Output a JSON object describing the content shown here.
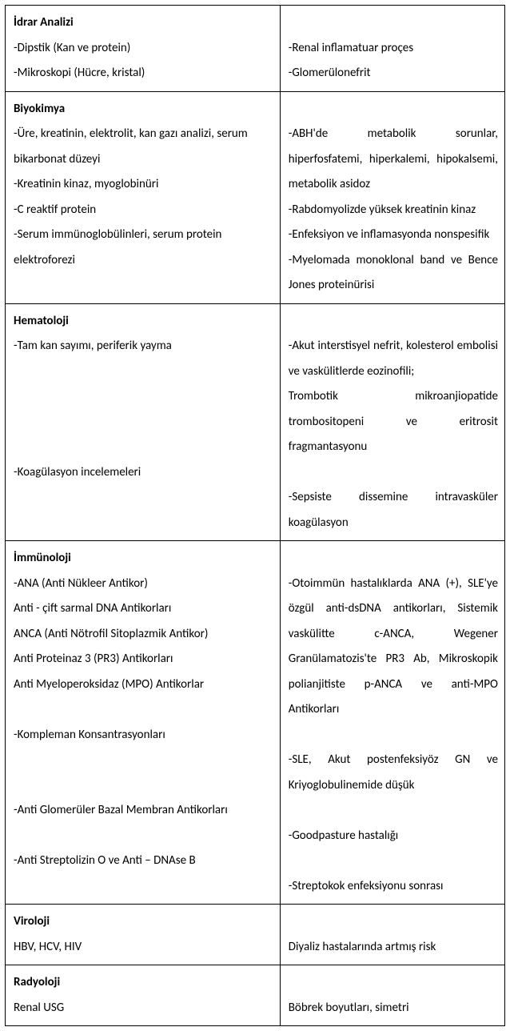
{
  "sections": {
    "idrar": {
      "title": "İdrar Analizi",
      "left": [
        "-Dipstik (Kan ve protein)",
        "-Mikroskopi (Hücre, kristal)"
      ],
      "right": [
        "-Renal inflamatuar proçes",
        "-Glomerülonefrit"
      ]
    },
    "biyokimya": {
      "title": "Biyokimya",
      "left": [
        "-Üre, kreatinin, elektrolit, kan gazı analizi, serum bikarbonat düzeyi",
        "-Kreatinin kinaz, myoglobinüri",
        "-C reaktif protein",
        "-Serum immünoglobülinleri, serum protein elektroforezi"
      ],
      "right": [
        "-ABH'de metabolik sorunlar, hiperfosfatemi, hiperkalemi, hipokalsemi, metabolik asidoz",
        "-Rabdomyolizde yüksek kreatinin kinaz",
        "-Enfeksiyon ve inflamasyonda nonspesifik",
        "-Myelomada monoklonal band ve Bence Jones proteinürisi"
      ]
    },
    "hematoloji": {
      "title": "Hematoloji",
      "left1": "-Tam kan sayımı, periferik yayma",
      "right1": "-Akut interstisyel nefrit, kolesterol embolisi ve vaskülitlerde eozinofili;",
      "right1b": "Trombotik mikroanjiopatide trombositopeni ve eritrosit fragmantasyonu",
      "left2": "-Koagülasyon incelemeleri",
      "right2": "-Sepsiste dissemine intravasküler koagülasyon"
    },
    "immunoloji": {
      "title": "İmmünoloji",
      "left1a": "-ANA (Anti Nükleer Antikor)",
      "left1b": "Anti - çift sarmal DNA Antikorları",
      "left1c": "ANCA (Anti Nötrofil Sitoplazmik Antikor)",
      "left1d": "Anti Proteinaz 3 (PR3) Antikorları",
      "left1e": "Anti Myeloperoksidaz (MPO) Antikorlar",
      "right1": "-Otoimmün hastalıklarda ANA (+), SLE'ye özgül anti-dsDNA antikorları, Sistemik vaskülitte c-ANCA, Wegener Granülamatozis'te PR3 Ab, Mikroskopik polianjitiste p-ANCA ve anti-MPO Antikorları",
      "left2": "-Kompleman Konsantrasyonları",
      "right2": "-SLE, Akut postenfeksiyöz GN ve Kriyoglobulinemide düşük",
      "left3": "-Anti Glomerüler Bazal Membran Antikorları",
      "right3": "-Goodpasture hastalığı",
      "left4": "-Anti Streptolizin O ve Anti – DNAse B",
      "right4": "-Streptokok enfeksiyonu sonrası"
    },
    "viroloji": {
      "title": "Viroloji",
      "left": "HBV, HCV, HIV",
      "right": "Diyaliz hastalarında artmış risk"
    },
    "radyoloji": {
      "title": "Radyoloji",
      "left": "Renal USG",
      "right": "Böbrek boyutları, simetri"
    }
  }
}
